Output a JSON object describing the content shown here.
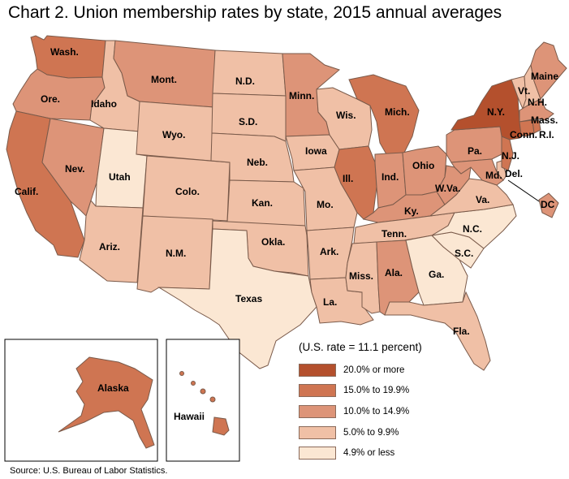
{
  "title": "Chart 2. Union membership rates by state, 2015 annual averages",
  "source": "Source: U.S. Bureau of Labor Statistics.",
  "legend": {
    "note": "(U.S. rate = 11.1 percent)",
    "items": [
      {
        "label": "20.0% or more",
        "color": "#b4502d"
      },
      {
        "label": "15.0% to 19.9%",
        "color": "#cf7552"
      },
      {
        "label": "10.0% to 14.9%",
        "color": "#dd9478"
      },
      {
        "label": "5.0% to 9.9%",
        "color": "#f0c0a6"
      },
      {
        "label": "4.9% or less",
        "color": "#fbe7d3"
      }
    ]
  },
  "map": {
    "states": [
      {
        "id": "wa",
        "label": "Wash.",
        "category": 1
      },
      {
        "id": "or",
        "label": "Ore.",
        "category": 2
      },
      {
        "id": "ca",
        "label": "Calif.",
        "category": 1
      },
      {
        "id": "nv",
        "label": "Nev.",
        "category": 2
      },
      {
        "id": "id",
        "label": "Idaho",
        "category": 3
      },
      {
        "id": "ut",
        "label": "Utah",
        "category": 4
      },
      {
        "id": "az",
        "label": "Ariz.",
        "category": 3
      },
      {
        "id": "mt",
        "label": "Mont.",
        "category": 2
      },
      {
        "id": "wy",
        "label": "Wyo.",
        "category": 3
      },
      {
        "id": "co",
        "label": "Colo.",
        "category": 3
      },
      {
        "id": "nm",
        "label": "N.M.",
        "category": 3
      },
      {
        "id": "nd",
        "label": "N.D.",
        "category": 3
      },
      {
        "id": "sd",
        "label": "S.D.",
        "category": 3
      },
      {
        "id": "ne",
        "label": "Neb.",
        "category": 3
      },
      {
        "id": "ks",
        "label": "Kan.",
        "category": 3
      },
      {
        "id": "ok",
        "label": "Okla.",
        "category": 3
      },
      {
        "id": "tx",
        "label": "Texas",
        "category": 4
      },
      {
        "id": "mn",
        "label": "Minn.",
        "category": 2
      },
      {
        "id": "ia",
        "label": "Iowa",
        "category": 3
      },
      {
        "id": "mo",
        "label": "Mo.",
        "category": 3
      },
      {
        "id": "ar",
        "label": "Ark.",
        "category": 3
      },
      {
        "id": "la",
        "label": "La.",
        "category": 3
      },
      {
        "id": "wi",
        "label": "Wis.",
        "category": 3
      },
      {
        "id": "il",
        "label": "Ill.",
        "category": 1
      },
      {
        "id": "mi",
        "label": "Mich.",
        "category": 1
      },
      {
        "id": "in",
        "label": "Ind.",
        "category": 2
      },
      {
        "id": "oh",
        "label": "Ohio",
        "category": 2
      },
      {
        "id": "ky",
        "label": "Ky.",
        "category": 2
      },
      {
        "id": "tn",
        "label": "Tenn.",
        "category": 3
      },
      {
        "id": "ms",
        "label": "Miss.",
        "category": 3
      },
      {
        "id": "al",
        "label": "Ala.",
        "category": 2
      },
      {
        "id": "ga",
        "label": "Ga.",
        "category": 4
      },
      {
        "id": "fl",
        "label": "Fla.",
        "category": 3
      },
      {
        "id": "sc",
        "label": "S.C.",
        "category": 4
      },
      {
        "id": "nc",
        "label": "N.C.",
        "category": 4
      },
      {
        "id": "va",
        "label": "Va.",
        "category": 3
      },
      {
        "id": "wv",
        "label": "W.Va.",
        "category": 2
      },
      {
        "id": "pa",
        "label": "Pa.",
        "category": 2
      },
      {
        "id": "ny",
        "label": "N.Y.",
        "category": 0
      },
      {
        "id": "vt",
        "label": "Vt.",
        "category": 3
      },
      {
        "id": "nh",
        "label": "N.H.",
        "category": 3
      },
      {
        "id": "me",
        "label": "Maine",
        "category": 2
      },
      {
        "id": "ma",
        "label": "Mass.",
        "category": 2
      },
      {
        "id": "ct",
        "label": "Conn.",
        "category": 1
      },
      {
        "id": "ri",
        "label": "R.I.",
        "category": 1
      },
      {
        "id": "nj",
        "label": "N.J.",
        "category": 1
      },
      {
        "id": "de",
        "label": "Del.",
        "category": 3
      },
      {
        "id": "md",
        "label": "Md.",
        "category": 2
      },
      {
        "id": "dc",
        "label": "DC",
        "category": 2
      },
      {
        "id": "ak",
        "label": "Alaska",
        "category": 1
      },
      {
        "id": "hi",
        "label": "Hawaii",
        "category": 1
      }
    ]
  }
}
